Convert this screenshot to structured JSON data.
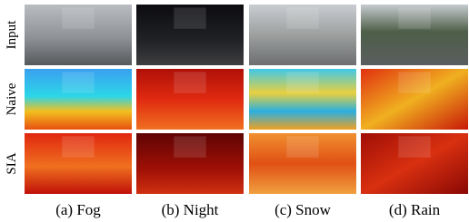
{
  "row_labels": [
    "Input",
    "Naive",
    "SIA"
  ],
  "captions": [
    "(a) Fog",
    "(b) Night",
    "(c) Snow",
    "(d) Rain"
  ]
}
